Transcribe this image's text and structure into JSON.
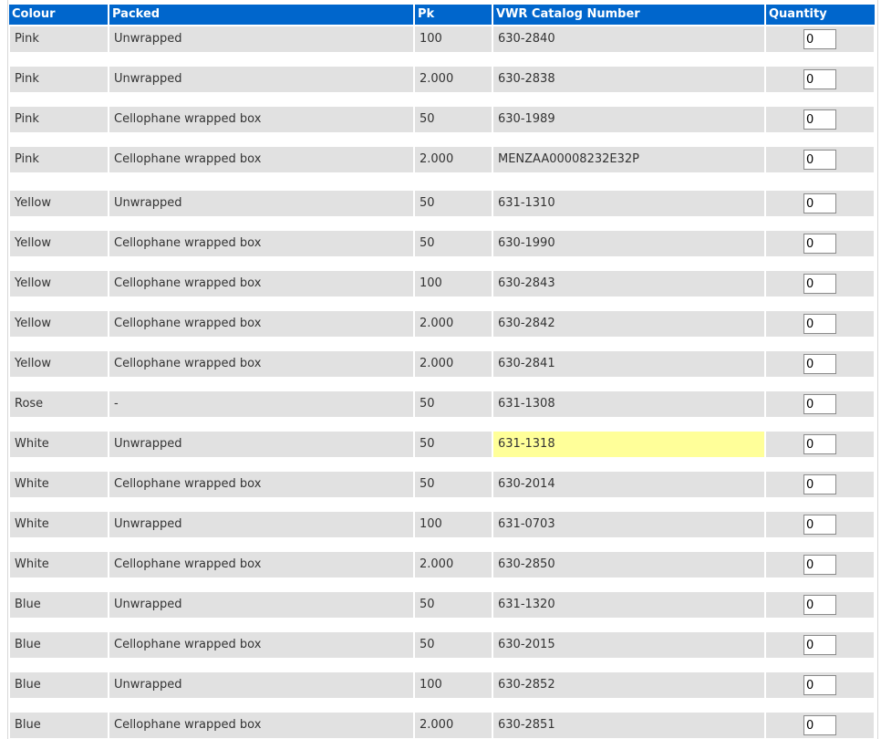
{
  "table": {
    "headers": {
      "colour": "Colour",
      "packed": "Packed",
      "pk": "Pk",
      "catalog": "VWR Catalog Number",
      "quantity": "Quantity"
    },
    "rows": [
      {
        "colour": "Pink",
        "packed": "Unwrapped",
        "pk": "100",
        "catalog": "630-2840",
        "quantity": "0"
      },
      {
        "colour": "Pink",
        "packed": "Unwrapped",
        "pk": "2.000",
        "catalog": "630-2838",
        "quantity": "0"
      },
      {
        "colour": "Pink",
        "packed": "Cellophane wrapped box",
        "pk": "50",
        "catalog": "630-1989",
        "quantity": "0"
      },
      {
        "colour": "Pink",
        "packed": "Cellophane wrapped box",
        "pk": "2.000",
        "catalog": "MENZAA00008232E32P",
        "quantity": "0"
      },
      {
        "colour": "Yellow",
        "packed": "Unwrapped",
        "pk": "50",
        "catalog": "631-1310",
        "quantity": "0"
      },
      {
        "colour": "Yellow",
        "packed": "Cellophane wrapped box",
        "pk": "50",
        "catalog": "630-1990",
        "quantity": "0"
      },
      {
        "colour": "Yellow",
        "packed": "Cellophane wrapped box",
        "pk": "100",
        "catalog": "630-2843",
        "quantity": "0"
      },
      {
        "colour": "Yellow",
        "packed": "Cellophane wrapped box",
        "pk": "2.000",
        "catalog": "630-2842",
        "quantity": "0"
      },
      {
        "colour": "Yellow",
        "packed": "Cellophane wrapped box",
        "pk": "2.000",
        "catalog": "630-2841",
        "quantity": "0"
      },
      {
        "colour": "Rose",
        "packed": "-",
        "pk": "50",
        "catalog": "631-1308",
        "quantity": "0"
      },
      {
        "colour": "White",
        "packed": "Unwrapped",
        "pk": "50",
        "catalog": "631-1318",
        "quantity": "0",
        "highlight": true
      },
      {
        "colour": "White",
        "packed": "Cellophane wrapped box",
        "pk": "50",
        "catalog": "630-2014",
        "quantity": "0"
      },
      {
        "colour": "White",
        "packed": "Unwrapped",
        "pk": "100",
        "catalog": "631-0703",
        "quantity": "0"
      },
      {
        "colour": "White",
        "packed": "Cellophane wrapped box",
        "pk": "2.000",
        "catalog": "630-2850",
        "quantity": "0"
      },
      {
        "colour": "Blue",
        "packed": "Unwrapped",
        "pk": "50",
        "catalog": "631-1320",
        "quantity": "0"
      },
      {
        "colour": "Blue",
        "packed": "Cellophane wrapped box",
        "pk": "50",
        "catalog": "630-2015",
        "quantity": "0"
      },
      {
        "colour": "Blue",
        "packed": "Unwrapped",
        "pk": "100",
        "catalog": "630-2852",
        "quantity": "0"
      },
      {
        "colour": "Blue",
        "packed": "Cellophane wrapped box",
        "pk": "2.000",
        "catalog": "630-2851",
        "quantity": "0"
      }
    ]
  },
  "colors": {
    "header_bg": "#0066cc",
    "row_bg": "#e1e1e1",
    "highlight_bg": "#ffff99"
  }
}
